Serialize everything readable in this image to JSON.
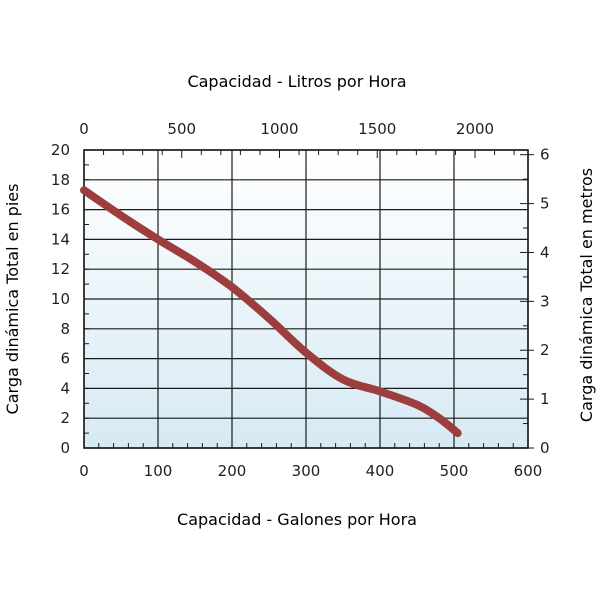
{
  "chart_data": {
    "type": "line",
    "top_axis_title": "Capacidad - Litros por Hora",
    "xlabel": "Capacidad - Galones por Hora",
    "ylabel": "Carga dinámica Total en pies",
    "ylabel_right": "Carga dinámica Total en metros",
    "xlim": [
      0,
      600
    ],
    "ylim": [
      0,
      20
    ],
    "xticks": [
      0,
      100,
      200,
      300,
      400,
      500,
      600
    ],
    "yticks": [
      0,
      2,
      4,
      6,
      8,
      10,
      12,
      14,
      16,
      18,
      20
    ],
    "top_ticks": [
      0,
      500,
      1000,
      1500,
      2000
    ],
    "right_ticks": [
      0,
      1,
      2,
      3,
      4,
      5,
      6
    ],
    "grid": true,
    "series": [
      {
        "x": [
          0,
          50,
          100,
          150,
          200,
          250,
          300,
          350,
          400,
          450,
          480,
          505
        ],
        "y": [
          17.3,
          15.6,
          14.0,
          12.5,
          10.8,
          8.7,
          6.4,
          4.6,
          3.8,
          2.9,
          2.0,
          1.0
        ]
      }
    ]
  },
  "colors": {
    "curve": "#9e3d3d",
    "grid": "#1a1a1a",
    "plot_bg_top": "#ffffff",
    "plot_bg_bottom": "#d6eaf4"
  }
}
